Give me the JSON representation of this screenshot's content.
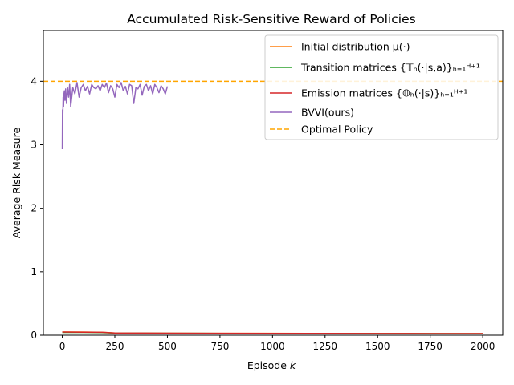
{
  "chart_data": {
    "type": "line",
    "title": "Accumulated Risk-Sensitive Reward of Policies",
    "xlabel": "Episode k",
    "ylabel": "Average Risk Measure",
    "xlim": [
      -90,
      2095
    ],
    "ylim": [
      0,
      4.8
    ],
    "xticks": [
      "0",
      "250",
      "500",
      "750",
      "1000",
      "1250",
      "1500",
      "1750",
      "2000"
    ],
    "yticks": [
      "0",
      "1",
      "2",
      "3",
      "4"
    ],
    "grid": false,
    "legend_position": "top-right",
    "colors": {
      "initial": "#ff7f0e",
      "transition": "#2ca02c",
      "emission": "#d62728",
      "bvvi": "#9467bd",
      "optimal": "#ffa500"
    },
    "series": [
      {
        "name": "Initial distribution μ(·)",
        "legend_text": "Initial distribution μ(·)",
        "color": "#ff7f0e",
        "x": [
          0,
          100,
          200,
          250,
          500,
          750,
          1000,
          1250,
          1500,
          1750,
          2000
        ],
        "y": [
          0.05,
          0.05,
          0.045,
          0.035,
          0.032,
          0.03,
          0.03,
          0.028,
          0.027,
          0.026,
          0.025
        ]
      },
      {
        "name": "Transition matrices",
        "legend_text": "Transition matrices {𝕋ₕ(·|s,a)}ₕ₌₁ᴴ⁺¹",
        "color": "#2ca02c",
        "x": [
          0,
          100,
          200,
          250,
          500,
          750,
          1000,
          1250,
          1500,
          1750,
          2000
        ],
        "y": [
          0.045,
          0.045,
          0.04,
          0.033,
          0.03,
          0.029,
          0.028,
          0.027,
          0.026,
          0.025,
          0.024
        ]
      },
      {
        "name": "Emission matrices",
        "legend_text": "Emission matrices {𝕆ₕ(·|s)}ₕ₌₁ᴴ⁺¹",
        "color": "#d62728",
        "x": [
          0,
          100,
          200,
          250,
          500,
          750,
          1000,
          1250,
          1500,
          1750,
          2000
        ],
        "y": [
          0.05,
          0.048,
          0.045,
          0.035,
          0.032,
          0.03,
          0.029,
          0.028,
          0.027,
          0.026,
          0.025
        ]
      },
      {
        "name": "BVVI(ours)",
        "legend_text": "BVVI(ours)",
        "color": "#9467bd",
        "x": [
          0,
          1,
          2,
          4,
          6,
          8,
          10,
          13,
          16,
          20,
          25,
          30,
          35,
          40,
          50,
          60,
          70,
          80,
          90,
          100,
          110,
          120,
          130,
          140,
          150,
          160,
          170,
          180,
          190,
          200,
          210,
          220,
          230,
          240,
          250,
          260,
          270,
          280,
          290,
          300,
          310,
          320,
          330,
          340,
          350,
          360,
          370,
          380,
          390,
          400,
          410,
          420,
          430,
          440,
          450,
          460,
          470,
          480,
          490,
          500
        ],
        "y": [
          2.93,
          3.55,
          3.35,
          3.75,
          3.6,
          3.8,
          3.85,
          3.7,
          3.88,
          3.65,
          3.9,
          3.75,
          3.95,
          3.6,
          3.9,
          3.8,
          3.98,
          3.75,
          3.9,
          3.95,
          3.85,
          3.92,
          3.8,
          3.95,
          3.9,
          3.88,
          3.93,
          3.85,
          3.95,
          3.9,
          3.97,
          3.82,
          3.93,
          3.88,
          3.75,
          3.95,
          3.9,
          3.98,
          3.85,
          3.92,
          3.8,
          3.95,
          3.93,
          3.65,
          3.9,
          3.88,
          3.95,
          3.78,
          3.92,
          3.95,
          3.85,
          3.93,
          3.8,
          3.95,
          3.9,
          3.82,
          3.93,
          3.88,
          3.8,
          3.92
        ]
      }
    ],
    "reference_line": {
      "name": "Optimal Policy",
      "legend_text": "Optimal Policy",
      "y": 4.0,
      "style": "dashed",
      "color": "#ffa500"
    }
  }
}
